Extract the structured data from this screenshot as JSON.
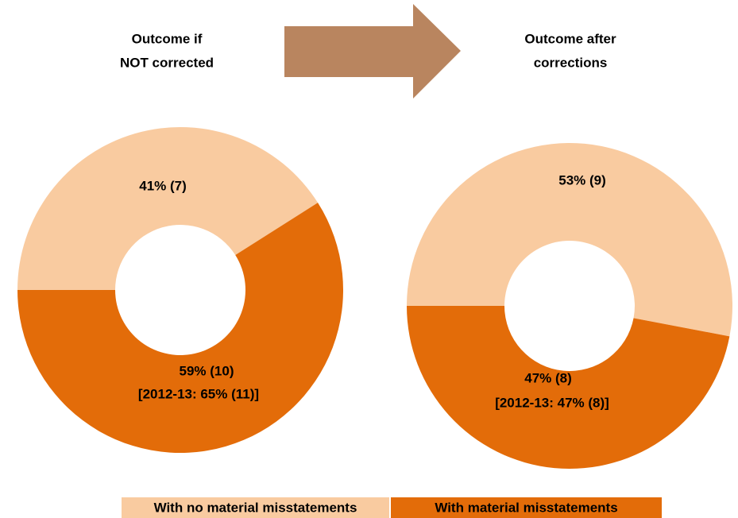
{
  "chart_data": [
    {
      "type": "donut",
      "title": [
        "Outcome if",
        "NOT corrected"
      ],
      "categories": [
        "With no material misstatements",
        "With material misstatements"
      ],
      "values": [
        41,
        59
      ],
      "value_labels": [
        "41% (7)",
        "59% (10)"
      ],
      "annotations": [
        null,
        "[2012-13: 65% (11)]"
      ],
      "colors": [
        "#f9cba0",
        "#e36c09"
      ],
      "legend": "bottom"
    },
    {
      "type": "donut",
      "title": [
        "Outcome after",
        "corrections"
      ],
      "categories": [
        "With no material misstatements",
        "With material misstatements"
      ],
      "values": [
        53,
        47
      ],
      "value_labels": [
        "53% (9)",
        "47% (8)"
      ],
      "annotations": [
        null,
        "[2012-13: 47% (8)]"
      ],
      "colors": [
        "#f9cba0",
        "#e36c09"
      ],
      "legend": "bottom"
    }
  ]
}
